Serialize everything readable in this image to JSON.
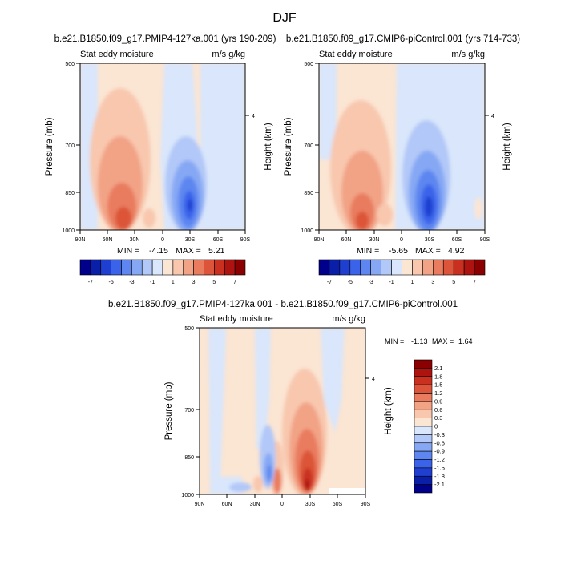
{
  "figure": {
    "title": "DJF",
    "left_title": "b.e21.B1850.f09_g17.PMIP4-127ka.001 (yrs 190-209)",
    "right_title": "b.e21.B1850.f09_g17.CMIP6-piControl.001 (yrs 714-733)",
    "diff_title": "b.e21.B1850.f09_g17.PMIP4-127ka.001 - b.e21.B1850.f09_g17.CMIP6-piControl.001"
  },
  "colors": {
    "neg": [
      "#00008b",
      "#0a1fa8",
      "#1f3fd0",
      "#3a63ea",
      "#5d86f0",
      "#86a8f4",
      "#b2c8f8",
      "#d9e6fb"
    ],
    "pos": [
      "#fbe5d3",
      "#f8c7ae",
      "#f2a386",
      "#e97c5e",
      "#dc5439",
      "#c93020",
      "#ad1410",
      "#8b0000"
    ]
  },
  "chart_data": [
    {
      "type": "heatmap",
      "id": "left",
      "subtitle_left": "Stat eddy moisture",
      "subtitle_right": "m/s g/kg",
      "xlabel": "",
      "ylabel": "Pressure (mb)",
      "ylabel_right": "Height (km)",
      "x_ticks": [
        "90N",
        "60N",
        "30N",
        "0",
        "30S",
        "60S",
        "90S"
      ],
      "y_ticks": [
        "500",
        "700",
        "850",
        "1000"
      ],
      "y_right_ticks": [
        "4"
      ],
      "xlim": [
        90,
        -90
      ],
      "ylim": [
        1000,
        500
      ],
      "min_label": "MIN =",
      "min_value": "-4.15",
      "max_label": "MAX =",
      "max_value": "5.21",
      "colorbar_labels": [
        "-7",
        "-5",
        "-3",
        "-1",
        "1",
        "3",
        "5",
        "7"
      ],
      "features": [
        {
          "kind": "positive",
          "lat": 45,
          "p": 930,
          "peak": 4.5
        },
        {
          "kind": "positive",
          "lat": 40,
          "p": 760,
          "peak": 2.5
        },
        {
          "kind": "positive",
          "lat": 10,
          "p": 960,
          "peak": 1.5
        },
        {
          "kind": "negative",
          "lat": -25,
          "p": 880,
          "peak": -4.1
        },
        {
          "kind": "negative",
          "lat": -45,
          "p": 820,
          "peak": -1.2
        },
        {
          "kind": "negative",
          "lat": 80,
          "p": 560,
          "peak": -0.8
        }
      ]
    },
    {
      "type": "heatmap",
      "id": "right",
      "subtitle_left": "Stat eddy moisture",
      "subtitle_right": "m/s g/kg",
      "xlabel": "",
      "ylabel": "Pressure (mb)",
      "ylabel_right": "Height (km)",
      "x_ticks": [
        "90N",
        "60N",
        "30N",
        "0",
        "30S",
        "60S",
        "90S"
      ],
      "y_ticks": [
        "500",
        "700",
        "850",
        "1000"
      ],
      "y_right_ticks": [
        "4"
      ],
      "xlim": [
        90,
        -90
      ],
      "ylim": [
        1000,
        500
      ],
      "min_label": "MIN =",
      "min_value": "-5.65",
      "max_label": "MAX =",
      "max_value": "4.92",
      "colorbar_labels": [
        "-7",
        "-5",
        "-3",
        "-1",
        "1",
        "3",
        "5",
        "7"
      ],
      "features": [
        {
          "kind": "positive",
          "lat": 45,
          "p": 950,
          "peak": 4.0
        },
        {
          "kind": "positive",
          "lat": 38,
          "p": 780,
          "peak": 2.0
        },
        {
          "kind": "negative",
          "lat": -25,
          "p": 880,
          "peak": -5.6
        },
        {
          "kind": "negative",
          "lat": -45,
          "p": 700,
          "peak": -0.8
        },
        {
          "kind": "negative",
          "lat": 70,
          "p": 620,
          "peak": -0.6
        }
      ]
    },
    {
      "type": "heatmap",
      "id": "diff",
      "subtitle_left": "Stat eddy moisture",
      "subtitle_right": "m/s g/kg",
      "xlabel": "",
      "ylabel": "Pressure (mb)",
      "ylabel_right": "Height (km)",
      "x_ticks": [
        "90N",
        "60N",
        "30N",
        "0",
        "30S",
        "60S",
        "90S"
      ],
      "y_ticks": [
        "500",
        "700",
        "850",
        "1000"
      ],
      "y_right_ticks": [
        "4"
      ],
      "xlim": [
        90,
        -90
      ],
      "ylim": [
        1000,
        500
      ],
      "min_label": "MIN =",
      "min_value": "-1.13",
      "max_label": "MAX =",
      "max_value": "1.64",
      "colorbar_labels": [
        "2.1",
        "1.8",
        "1.5",
        "1.2",
        "0.9",
        "0.6",
        "0.3",
        "0",
        "-0.3",
        "-0.6",
        "-0.9",
        "-1.2",
        "-1.5",
        "-1.8",
        "-2.1"
      ],
      "features": [
        {
          "kind": "positive",
          "lat": -22,
          "p": 920,
          "peak": 1.6
        },
        {
          "kind": "positive",
          "lat": -20,
          "p": 720,
          "peak": 0.7
        },
        {
          "kind": "positive",
          "lat": 5,
          "p": 960,
          "peak": 0.9
        },
        {
          "kind": "negative",
          "lat": 10,
          "p": 880,
          "peak": -1.1
        },
        {
          "kind": "negative",
          "lat": 25,
          "p": 1000,
          "peak": -0.5
        },
        {
          "kind": "negative",
          "lat": 75,
          "p": 560,
          "peak": -0.4
        },
        {
          "kind": "negative",
          "lat": -70,
          "p": 980,
          "peak": 0
        }
      ]
    }
  ]
}
